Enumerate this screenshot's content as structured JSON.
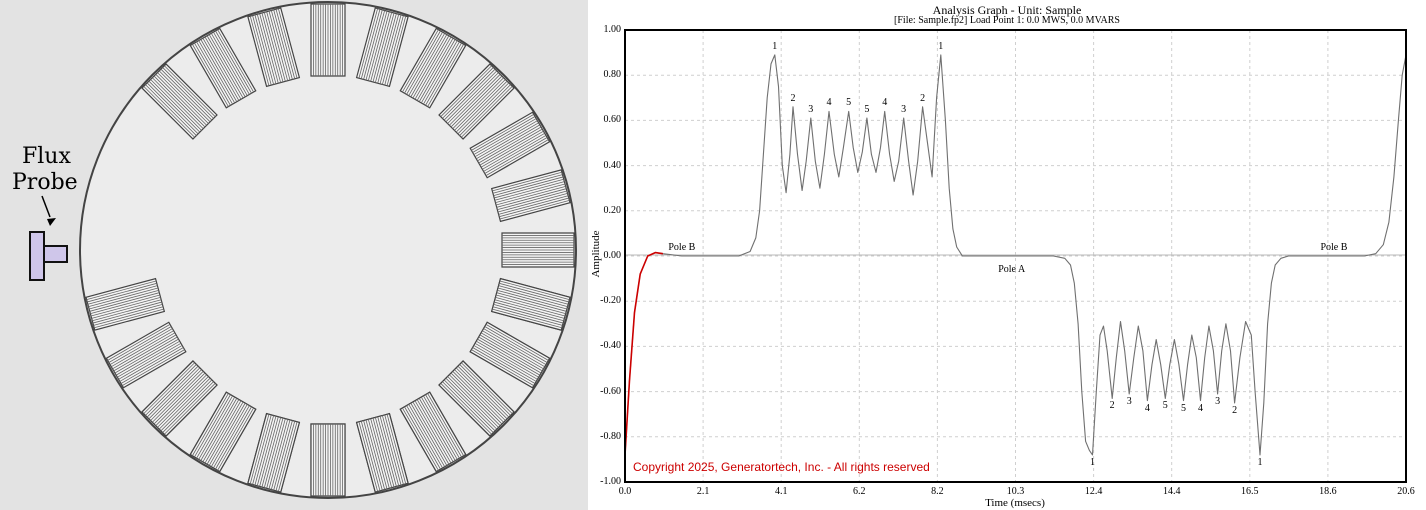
{
  "diagram": {
    "probe_line1": "Flux",
    "probe_line2": "Probe",
    "colors": {
      "background": "#e3e3e3",
      "rotor_fill": "#ececec",
      "probe_fill": "#cfc6ea",
      "slot_stroke": "#555555"
    }
  },
  "graph": {
    "title": "Analysis Graph - Unit: Sample",
    "subtitle": "[File: Sample.fp2]  Load Point 1:   0.0 MWS,   0.0 MVARS",
    "xlabel": "Time (msecs)",
    "ylabel": "Amplitude",
    "copyright": "Copyright 2025, Generatortech, Inc. - All rights reserved",
    "colors": {
      "trace": "#707070",
      "highlight": "#cc0000",
      "grid": "#cfcfcf",
      "copyright": "#cc0000"
    }
  },
  "chart_data": {
    "type": "line",
    "title": "Analysis Graph - Unit: Sample",
    "xlabel": "Time (msecs)",
    "ylabel": "Amplitude",
    "xlim": [
      0,
      20.6
    ],
    "ylim": [
      -1.0,
      1.0
    ],
    "x_ticks": [
      "0.0",
      "2.1",
      "4.1",
      "6.2",
      "8.2",
      "10.3",
      "12.4",
      "14.4",
      "16.5",
      "18.6",
      "20.6"
    ],
    "y_ticks": [
      "1.00",
      "0.80",
      "0.60",
      "0.40",
      "0.20",
      "0.00",
      "-0.20",
      "-0.40",
      "-0.60",
      "-0.80",
      "-1.00"
    ],
    "grid": true,
    "annotations": {
      "poles": [
        {
          "label": "Pole B",
          "x": 1.5,
          "y": 0.0
        },
        {
          "label": "Pole A",
          "x": 10.2,
          "y": 0.0
        },
        {
          "label": "Pole B",
          "x": 18.7,
          "y": 0.0
        }
      ],
      "peaks": [
        {
          "label": "1",
          "x": 3.95,
          "y": 0.89
        },
        {
          "label": "2",
          "x": 4.43,
          "y": 0.66
        },
        {
          "label": "3",
          "x": 4.9,
          "y": 0.61
        },
        {
          "label": "4",
          "x": 5.38,
          "y": 0.64
        },
        {
          "label": "5",
          "x": 5.9,
          "y": 0.64
        },
        {
          "label": "5",
          "x": 6.38,
          "y": 0.61
        },
        {
          "label": "4",
          "x": 6.85,
          "y": 0.64
        },
        {
          "label": "3",
          "x": 7.35,
          "y": 0.61
        },
        {
          "label": "2",
          "x": 7.85,
          "y": 0.66
        },
        {
          "label": "1",
          "x": 8.33,
          "y": 0.89
        },
        {
          "label": "1",
          "x": 12.33,
          "y": -0.88
        },
        {
          "label": "2",
          "x": 12.85,
          "y": -0.63
        },
        {
          "label": "3",
          "x": 13.3,
          "y": -0.61
        },
        {
          "label": "4",
          "x": 13.78,
          "y": -0.64
        },
        {
          "label": "5",
          "x": 14.25,
          "y": -0.63
        },
        {
          "label": "5",
          "x": 14.73,
          "y": -0.64
        },
        {
          "label": "4",
          "x": 15.18,
          "y": -0.64
        },
        {
          "label": "3",
          "x": 15.63,
          "y": -0.61
        },
        {
          "label": "2",
          "x": 16.08,
          "y": -0.65
        },
        {
          "label": "1",
          "x": 16.75,
          "y": -0.88
        }
      ]
    },
    "series": [
      {
        "color": "#707070",
        "x": [
          0.0,
          0.12,
          0.25,
          0.4,
          0.6,
          0.8,
          1.0,
          1.5,
          2.5,
          3.0,
          3.3,
          3.45,
          3.55,
          3.65,
          3.75,
          3.85,
          3.95,
          4.05,
          4.15,
          4.25,
          4.35,
          4.43,
          4.55,
          4.67,
          4.78,
          4.9,
          5.02,
          5.14,
          5.26,
          5.38,
          5.52,
          5.64,
          5.76,
          5.9,
          6.02,
          6.14,
          6.26,
          6.38,
          6.5,
          6.62,
          6.74,
          6.85,
          6.98,
          7.1,
          7.22,
          7.35,
          7.48,
          7.6,
          7.72,
          7.85,
          7.98,
          8.1,
          8.22,
          8.33,
          8.45,
          8.55,
          8.65,
          8.75,
          8.9,
          9.2,
          11.3,
          11.6,
          11.75,
          11.85,
          11.95,
          12.05,
          12.15,
          12.25,
          12.33,
          12.43,
          12.53,
          12.62,
          12.72,
          12.85,
          12.96,
          13.07,
          13.18,
          13.3,
          13.42,
          13.54,
          13.66,
          13.78,
          13.9,
          14.01,
          14.13,
          14.25,
          14.37,
          14.49,
          14.61,
          14.73,
          14.84,
          14.95,
          15.07,
          15.18,
          15.29,
          15.4,
          15.52,
          15.63,
          15.74,
          15.85,
          15.97,
          16.08,
          16.22,
          16.37,
          16.52,
          16.62,
          16.75,
          16.85,
          16.95,
          17.05,
          17.15,
          17.3,
          17.5,
          19.5,
          19.8,
          20.0,
          20.15,
          20.28,
          20.4,
          20.5,
          20.6
        ],
        "y": [
          -0.88,
          -0.55,
          -0.25,
          -0.08,
          0.0,
          0.015,
          0.01,
          0.0,
          0.0,
          0.0,
          0.02,
          0.08,
          0.2,
          0.45,
          0.7,
          0.85,
          0.89,
          0.75,
          0.4,
          0.28,
          0.45,
          0.66,
          0.45,
          0.29,
          0.42,
          0.61,
          0.42,
          0.3,
          0.45,
          0.64,
          0.45,
          0.35,
          0.48,
          0.64,
          0.48,
          0.37,
          0.46,
          0.61,
          0.45,
          0.37,
          0.48,
          0.64,
          0.45,
          0.33,
          0.42,
          0.61,
          0.42,
          0.27,
          0.42,
          0.66,
          0.5,
          0.35,
          0.7,
          0.89,
          0.6,
          0.3,
          0.12,
          0.04,
          0.0,
          0.0,
          0.0,
          -0.01,
          -0.04,
          -0.12,
          -0.3,
          -0.6,
          -0.82,
          -0.86,
          -0.88,
          -0.6,
          -0.35,
          -0.31,
          -0.42,
          -0.63,
          -0.45,
          -0.29,
          -0.42,
          -0.61,
          -0.45,
          -0.31,
          -0.42,
          -0.64,
          -0.48,
          -0.37,
          -0.48,
          -0.63,
          -0.48,
          -0.37,
          -0.48,
          -0.64,
          -0.48,
          -0.35,
          -0.45,
          -0.64,
          -0.45,
          -0.31,
          -0.42,
          -0.61,
          -0.42,
          -0.3,
          -0.42,
          -0.65,
          -0.45,
          -0.29,
          -0.35,
          -0.6,
          -0.88,
          -0.65,
          -0.3,
          -0.12,
          -0.04,
          -0.01,
          0.0,
          0.0,
          0.01,
          0.05,
          0.15,
          0.35,
          0.6,
          0.8,
          0.89
        ]
      },
      {
        "color": "#cc0000",
        "x": [
          0.0,
          0.12,
          0.25,
          0.4,
          0.6,
          0.8,
          1.0
        ],
        "y": [
          -0.88,
          -0.55,
          -0.25,
          -0.08,
          0.0,
          0.015,
          0.01
        ]
      }
    ]
  }
}
